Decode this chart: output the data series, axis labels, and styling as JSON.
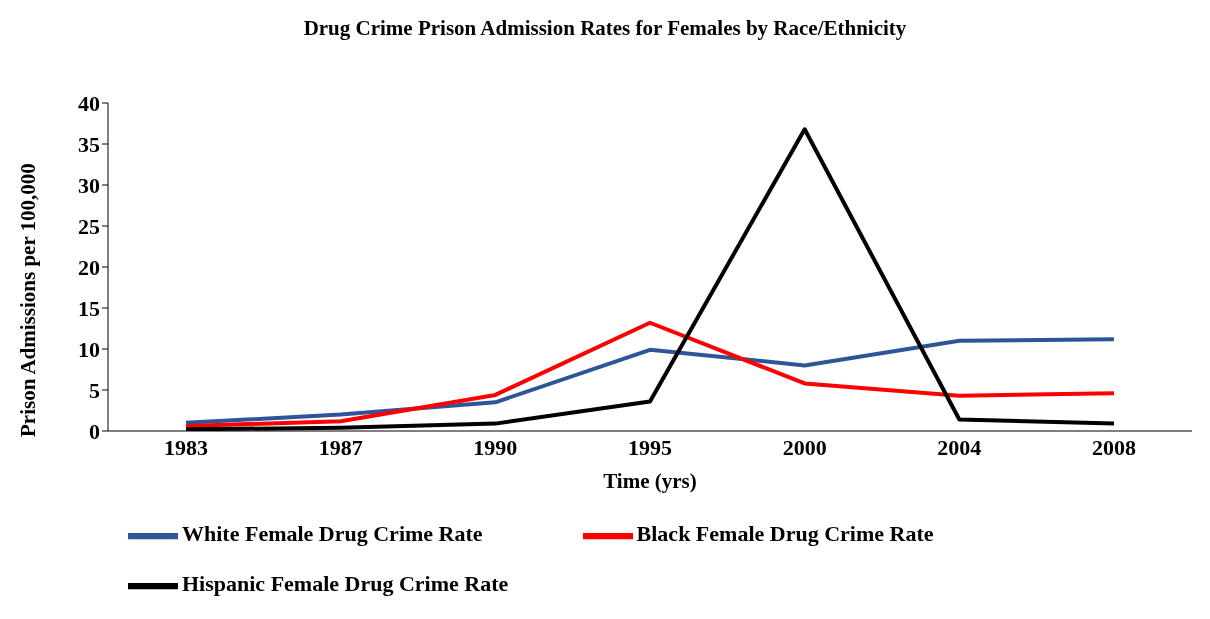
{
  "chart_data": {
    "type": "line",
    "title": "Drug Crime Prison Admission Rates for Females by Race/Ethnicity",
    "xlabel": "Time (yrs)",
    "ylabel": "Prison Admissions  per 100,000",
    "categories": [
      "1983",
      "1987",
      "1990",
      "1995",
      "2000",
      "2004",
      "2008"
    ],
    "series": [
      {
        "name": "White Female Drug Crime Rate",
        "color": "#2e5597",
        "values": [
          1.0,
          2.0,
          3.5,
          9.9,
          8.0,
          11.0,
          11.2
        ]
      },
      {
        "name": "Black Female Drug Crime Rate",
        "color": "#ff0000",
        "values": [
          0.6,
          1.2,
          4.4,
          13.2,
          5.8,
          4.3,
          4.6
        ]
      },
      {
        "name": "Hispanic Female Drug Crime Rate",
        "color": "#000000",
        "values": [
          0.2,
          0.4,
          0.9,
          3.6,
          36.8,
          1.4,
          0.9
        ]
      }
    ],
    "ylim": [
      0,
      40
    ],
    "yticks": [
      0,
      5,
      10,
      15,
      20,
      25,
      30,
      35,
      40
    ],
    "grid": false,
    "legend": "bottom",
    "marker": "none",
    "line_style": "solid"
  }
}
